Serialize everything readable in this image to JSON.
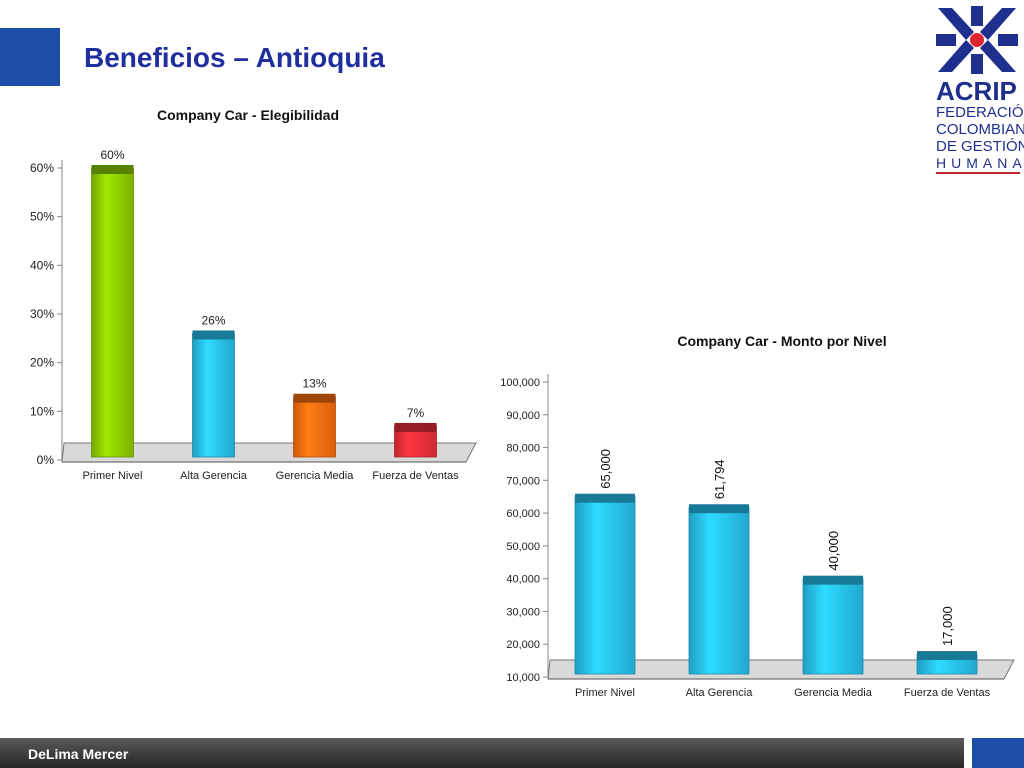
{
  "page": {
    "title": "Beneficios – Antioquia",
    "footer": "DeLima Mercer"
  },
  "logo": {
    "acronym": "ACRIP",
    "line1": "FEDERACIÓN",
    "line2": "COLOMBIANA",
    "line3": "DE GESTIÓN",
    "line4": "HUMANA"
  },
  "colors": {
    "title": "#1f2f9e",
    "accent": "#1f4ea8",
    "green": "#8fd000",
    "cyan": "#29c4f5",
    "orange": "#ff7010",
    "red": "#f0303a"
  },
  "chart_data": [
    {
      "type": "bar",
      "title": "Company Car - Elegibilidad",
      "categories": [
        "Primer Nivel",
        "Alta Gerencia",
        "Gerencia Media",
        "Fuerza de Ventas"
      ],
      "values": [
        60,
        26,
        13,
        7
      ],
      "value_labels": [
        "60%",
        "26%",
        "13%",
        "7%"
      ],
      "bar_colors": [
        "#8fd000",
        "#29c4f5",
        "#ff7010",
        "#f0303a"
      ],
      "ylim": [
        0,
        60
      ],
      "yticks": [
        0,
        10,
        20,
        30,
        40,
        50,
        60
      ],
      "ytick_labels": [
        "0%",
        "10%",
        "20%",
        "30%",
        "40%",
        "50%",
        "60%"
      ],
      "xlabel": "",
      "ylabel": ""
    },
    {
      "type": "bar",
      "title": "Company Car - Monto por Nivel",
      "categories": [
        "Primer Nivel",
        "Alta Gerencia",
        "Gerencia Media",
        "Fuerza de Ventas"
      ],
      "values": [
        65000,
        61794,
        40000,
        17000
      ],
      "value_labels": [
        "65,000",
        "61,794",
        "40,000",
        "17,000"
      ],
      "bar_colors": [
        "#29c4f5",
        "#29c4f5",
        "#29c4f5",
        "#29c4f5"
      ],
      "ylim": [
        10000,
        100000
      ],
      "yticks": [
        10000,
        20000,
        30000,
        40000,
        50000,
        60000,
        70000,
        80000,
        90000,
        100000
      ],
      "ytick_labels": [
        "10,000",
        "20,000",
        "30,000",
        "40,000",
        "50,000",
        "60,000",
        "70,000",
        "80,000",
        "90,000",
        "100,000"
      ],
      "xlabel": "",
      "ylabel": ""
    }
  ]
}
